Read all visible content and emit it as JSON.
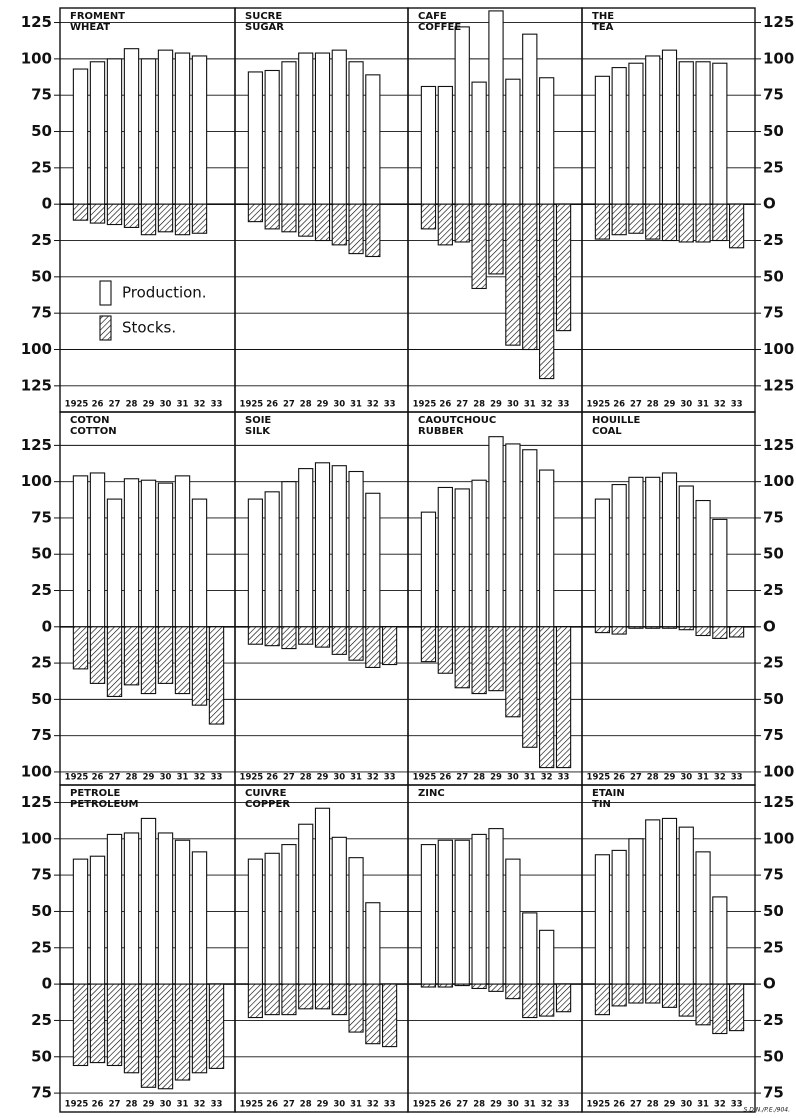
{
  "chart_data": [
    {
      "type": "bar",
      "title": "FROMENT",
      "subtitle": "WHEAT",
      "categories": [
        "1925",
        "26",
        "27",
        "28",
        "29",
        "30",
        "31",
        "32",
        "33"
      ],
      "series": [
        {
          "name": "Production.",
          "color": "#ffffff",
          "values": [
            93,
            98,
            100,
            107,
            100,
            106,
            104,
            102,
            null
          ]
        },
        {
          "name": "Stocks.",
          "color": "#000000",
          "values": [
            -11,
            -13,
            -14,
            -16,
            -21,
            -19,
            -21,
            -20,
            null
          ]
        }
      ],
      "ylim": [
        -143,
        135
      ],
      "yticks": [
        125,
        100,
        75,
        50,
        25,
        0,
        {
          "value": -25,
          "label": "25"
        },
        {
          "value": -50,
          "label": "50"
        },
        {
          "value": -75,
          "label": "75"
        },
        {
          "value": -100,
          "label": "100"
        },
        {
          "value": -125,
          "label": "125"
        }
      ]
    },
    {
      "type": "bar",
      "title": "SUCRE",
      "subtitle": "SUGAR",
      "categories": [
        "1925",
        "26",
        "27",
        "28",
        "29",
        "30",
        "31",
        "32",
        "33"
      ],
      "series": [
        {
          "color": "#ffffff",
          "values": [
            91,
            92,
            98,
            104,
            104,
            106,
            98,
            89,
            null
          ]
        },
        {
          "color": "#000000",
          "values": [
            -12,
            -17,
            -19,
            -22,
            -25,
            -28,
            -34,
            -36,
            null
          ]
        }
      ],
      "ylim": [
        -143,
        135
      ],
      "yticks": [
        125,
        100,
        75,
        50,
        25,
        0,
        -25,
        -50,
        -75,
        -100,
        -125
      ]
    },
    {
      "type": "bar",
      "title": "CAFE",
      "subtitle": "COFFEE",
      "categories": [
        "1925",
        "26",
        "27",
        "28",
        "29",
        "30",
        "31",
        "32",
        "33"
      ],
      "series": [
        {
          "color": "#ffffff",
          "values": [
            81,
            81,
            122,
            84,
            133,
            86,
            117,
            87,
            null
          ]
        },
        {
          "color": "#000000",
          "values": [
            -17,
            -28,
            -26,
            -58,
            -48,
            -97,
            -100,
            -120,
            -87
          ]
        }
      ],
      "ylim": [
        -143,
        135
      ],
      "yticks": [
        125,
        100,
        75,
        50,
        25,
        0,
        -25,
        -50,
        -75,
        -100,
        -125
      ]
    },
    {
      "type": "bar",
      "title": "THE",
      "subtitle": "TEA",
      "categories": [
        "1925",
        "26",
        "27",
        "28",
        "29",
        "30",
        "31",
        "32",
        "33"
      ],
      "series": [
        {
          "color": "#ffffff",
          "values": [
            88,
            94,
            97,
            102,
            106,
            98,
            98,
            97,
            null
          ]
        },
        {
          "color": "#000000",
          "values": [
            -24,
            -21,
            -20,
            -24,
            -25,
            -26,
            -26,
            -25,
            -30
          ]
        }
      ],
      "ylim": [
        -143,
        135
      ],
      "yticks": [
        125,
        100,
        75,
        50,
        25,
        {
          "value": 0,
          "label": "O"
        },
        {
          "value": -25,
          "label": "25"
        },
        {
          "value": -50,
          "label": "50"
        },
        {
          "value": -75,
          "label": "75"
        },
        {
          "value": -100,
          "label": "100"
        },
        {
          "value": -125,
          "label": "125"
        }
      ]
    },
    {
      "type": "bar",
      "title": "COTON",
      "subtitle": "COTTON",
      "categories": [
        "1925",
        "26",
        "27",
        "28",
        "29",
        "30",
        "31",
        "32",
        "33"
      ],
      "series": [
        {
          "color": "#ffffff",
          "values": [
            104,
            106,
            88,
            102,
            101,
            99,
            104,
            88,
            null
          ]
        },
        {
          "color": "#000000",
          "values": [
            -29,
            -39,
            -48,
            -40,
            -46,
            -39,
            -46,
            -54,
            -67
          ]
        }
      ],
      "ylim": [
        -109,
        148
      ],
      "yticks": [
        125,
        100,
        75,
        50,
        25,
        0,
        {
          "value": -25,
          "label": "25"
        },
        {
          "value": -50,
          "label": "50"
        },
        {
          "value": -75,
          "label": "75"
        },
        {
          "value": -100,
          "label": "100"
        }
      ]
    },
    {
      "type": "bar",
      "title": "SOIE",
      "subtitle": "SILK",
      "categories": [
        "1925",
        "26",
        "27",
        "28",
        "29",
        "30",
        "31",
        "32",
        "33"
      ],
      "series": [
        {
          "color": "#ffffff",
          "values": [
            88,
            93,
            100,
            109,
            113,
            111,
            107,
            92,
            null
          ]
        },
        {
          "color": "#000000",
          "values": [
            -12,
            -13,
            -15,
            -12,
            -14,
            -19,
            -23,
            -28,
            -26
          ]
        }
      ],
      "ylim": [
        -109,
        148
      ],
      "yticks": [
        125,
        100,
        75,
        50,
        25,
        0,
        -25,
        -50,
        -75,
        -100
      ]
    },
    {
      "type": "bar",
      "title": "CAOUTCHOUC",
      "subtitle": "RUBBER",
      "categories": [
        "1925",
        "26",
        "27",
        "28",
        "29",
        "30",
        "31",
        "32",
        "33"
      ],
      "series": [
        {
          "color": "#ffffff",
          "values": [
            79,
            96,
            95,
            101,
            131,
            126,
            122,
            108,
            null
          ]
        },
        {
          "color": "#000000",
          "values": [
            -24,
            -32,
            -42,
            -46,
            -44,
            -62,
            -83,
            -97,
            -97
          ]
        }
      ],
      "ylim": [
        -109,
        148
      ],
      "yticks": [
        125,
        100,
        75,
        50,
        25,
        0,
        -25,
        -50,
        -75,
        -100
      ]
    },
    {
      "type": "bar",
      "title": "HOUILLE",
      "subtitle": "COAL",
      "categories": [
        "1925",
        "26",
        "27",
        "28",
        "29",
        "30",
        "31",
        "32",
        "33"
      ],
      "series": [
        {
          "color": "#ffffff",
          "values": [
            88,
            98,
            103,
            103,
            106,
            97,
            87,
            74,
            null
          ]
        },
        {
          "color": "#000000",
          "values": [
            -4,
            -5,
            -1,
            -1,
            -1,
            -2,
            -6,
            -8,
            -7
          ]
        }
      ],
      "ylim": [
        -109,
        148
      ],
      "yticks": [
        125,
        100,
        75,
        50,
        25,
        {
          "value": 0,
          "label": "O"
        },
        {
          "value": -25,
          "label": "25"
        },
        {
          "value": -50,
          "label": "50"
        },
        {
          "value": -75,
          "label": "75"
        },
        {
          "value": -100,
          "label": "100"
        }
      ]
    },
    {
      "type": "bar",
      "title": "PETROLE",
      "subtitle": "PETROLEUM",
      "categories": [
        "1925",
        "26",
        "27",
        "28",
        "29",
        "30",
        "31",
        "32",
        "33"
      ],
      "series": [
        {
          "color": "#ffffff",
          "values": [
            86,
            88,
            103,
            104,
            114,
            104,
            99,
            91,
            null
          ]
        },
        {
          "color": "#000000",
          "values": [
            -56,
            -54,
            -56,
            -61,
            -71,
            -72,
            -66,
            -61,
            -58
          ]
        }
      ],
      "ylim": [
        -88,
        137
      ],
      "yticks": [
        125,
        100,
        75,
        50,
        25,
        0,
        {
          "value": -25,
          "label": "25"
        },
        {
          "value": -50,
          "label": "50"
        },
        {
          "value": -75,
          "label": "75"
        }
      ]
    },
    {
      "type": "bar",
      "title": "CUIVRE",
      "subtitle": "COPPER",
      "categories": [
        "1925",
        "26",
        "27",
        "28",
        "29",
        "30",
        "31",
        "32",
        "33"
      ],
      "series": [
        {
          "color": "#ffffff",
          "values": [
            86,
            90,
            96,
            110,
            121,
            101,
            87,
            56,
            null
          ]
        },
        {
          "color": "#000000",
          "values": [
            -23,
            -21,
            -21,
            -17,
            -17,
            -21,
            -33,
            -41,
            -43
          ]
        }
      ],
      "ylim": [
        -88,
        137
      ],
      "yticks": [
        125,
        100,
        75,
        50,
        25,
        0,
        -25,
        -50,
        -75
      ]
    },
    {
      "type": "bar",
      "title": "ZINC",
      "categories": [
        "1925",
        "26",
        "27",
        "28",
        "29",
        "30",
        "31",
        "32",
        "33"
      ],
      "series": [
        {
          "color": "#ffffff",
          "values": [
            96,
            99,
            99,
            103,
            107,
            86,
            49,
            37,
            null
          ]
        },
        {
          "color": "#000000",
          "values": [
            -2,
            -2,
            -1,
            -3,
            -5,
            -10,
            -23,
            -22,
            -19
          ]
        }
      ],
      "ylim": [
        -88,
        137
      ],
      "yticks": [
        125,
        100,
        75,
        50,
        25,
        0,
        -25,
        -50,
        -75
      ]
    },
    {
      "type": "bar",
      "title": "ETAIN",
      "subtitle": "TIN",
      "categories": [
        "1925",
        "26",
        "27",
        "28",
        "29",
        "30",
        "31",
        "32",
        "33"
      ],
      "series": [
        {
          "color": "#ffffff",
          "values": [
            89,
            92,
            100,
            113,
            114,
            108,
            91,
            60,
            null
          ]
        },
        {
          "color": "#000000",
          "values": [
            -21,
            -15,
            -13,
            -13,
            -16,
            -22,
            -28,
            -34,
            -32
          ]
        }
      ],
      "ylim": [
        -88,
        137
      ],
      "yticks": [
        125,
        100,
        75,
        50,
        25,
        {
          "value": 0,
          "label": "O"
        },
        {
          "value": -25,
          "label": "25"
        },
        {
          "value": -50,
          "label": "50"
        },
        {
          "value": -75,
          "label": "75"
        }
      ]
    }
  ],
  "footnote": "S.D.N./P.E./904."
}
